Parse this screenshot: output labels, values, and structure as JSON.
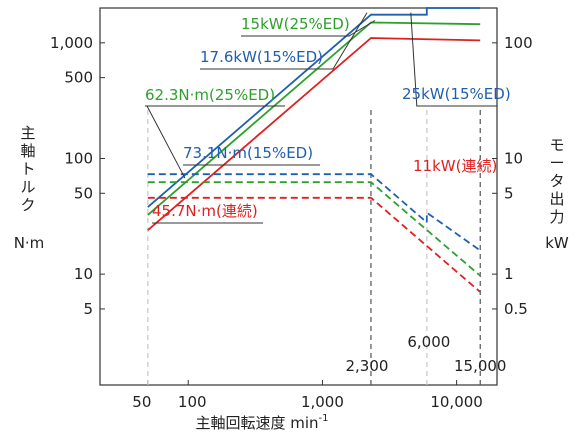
{
  "chart_data": {
    "type": "line",
    "xlabel": "主軸回転速度",
    "xlabel_unit": "min",
    "xlabel_unit_sup": "-1",
    "ylabel_left": [
      "主",
      "軸",
      "ト",
      "ル",
      "ク"
    ],
    "ylabel_left_unit": "N·m",
    "ylabel_right": [
      "モ",
      "ー",
      "タ",
      "出",
      "力"
    ],
    "ylabel_right_unit": "kW",
    "xscale": "log",
    "yscale": "log",
    "xlim": [
      22,
      20000
    ],
    "ylim_left": [
      1.1,
      2000
    ],
    "ylim_right": [
      0.11,
      200
    ],
    "x_tick_labels": [
      {
        "label": "50",
        "value": 50
      },
      {
        "label": "100",
        "value": 100
      },
      {
        "label": "1,000",
        "value": 1000
      },
      {
        "label": "10,000",
        "value": 10000
      }
    ],
    "y_left_tick_labels": [
      {
        "label": "1,000",
        "value": 1000
      },
      {
        "label": "500",
        "value": 500
      },
      {
        "label": "100",
        "value": 100
      },
      {
        "label": "50",
        "value": 50
      },
      {
        "label": "10",
        "value": 10
      },
      {
        "label": "5",
        "value": 5
      }
    ],
    "y_right_tick_labels": [
      {
        "label": "100",
        "value": 100
      },
      {
        "label": "10",
        "value": 10
      },
      {
        "label": "5",
        "value": 5
      },
      {
        "label": "1",
        "value": 1
      },
      {
        "label": "0.5",
        "value": 0.5
      }
    ],
    "reference_lines": [
      {
        "label": "50",
        "x": 50,
        "color": "#c8c8c8"
      },
      {
        "label": "2,300",
        "x": 2300,
        "color": "#555555"
      },
      {
        "label": "6,000",
        "x": 6000,
        "color": "#c8c8c8"
      },
      {
        "label": "15,000",
        "x": 15000,
        "color": "#555555"
      }
    ],
    "series": [
      {
        "kind": "power",
        "name": "25kW(15%ED)",
        "color": "#1f5fb0",
        "points": [
          [
            50,
            3.8
          ],
          [
            2300,
            175
          ],
          [
            6000,
            175
          ],
          [
            6000,
            200
          ],
          [
            15000,
            200
          ]
        ]
      },
      {
        "kind": "power",
        "name": "15kW(25%ED)",
        "color": "#2ea02c",
        "points": [
          [
            50,
            3.25
          ],
          [
            2300,
            150
          ],
          [
            15000,
            145
          ]
        ]
      },
      {
        "kind": "power",
        "name": "11kW(連続)",
        "color": "#e02020",
        "points": [
          [
            50,
            2.4
          ],
          [
            2300,
            110
          ],
          [
            15000,
            105
          ]
        ]
      },
      {
        "kind": "torque",
        "name": "73.1N·m(15%ED)",
        "color": "#1f5fb0",
        "points": [
          [
            50,
            73.1
          ],
          [
            2300,
            73.1
          ],
          [
            6000,
            28
          ],
          [
            6000,
            34
          ],
          [
            15000,
            16
          ]
        ]
      },
      {
        "kind": "torque",
        "name": "62.3N·m(25%ED)",
        "color": "#2ea02c",
        "points": [
          [
            50,
            62.3
          ],
          [
            2300,
            62.3
          ],
          [
            15000,
            9.7
          ]
        ]
      },
      {
        "kind": "torque",
        "name": "45.7N·m(連続)",
        "color": "#e02020",
        "points": [
          [
            50,
            45.7
          ],
          [
            2300,
            45.7
          ],
          [
            15000,
            7
          ]
        ]
      }
    ],
    "annotations": [
      {
        "text": "15kW(25%ED)",
        "color": "#2ea02c"
      },
      {
        "text": "17.6kW(15%ED)",
        "color": "#1f5fb0"
      },
      {
        "text": "25kW(15%ED)",
        "color": "#1f5fb0"
      },
      {
        "text": "62.3N·m(25%ED)",
        "color": "#2ea02c"
      },
      {
        "text": "73.1N·m(15%ED)",
        "color": "#1f5fb0"
      },
      {
        "text": "11kW(連続)",
        "color": "#e02020"
      },
      {
        "text": "45.7N·m(連続)",
        "color": "#e02020"
      }
    ],
    "grid": false,
    "legend": "none"
  }
}
